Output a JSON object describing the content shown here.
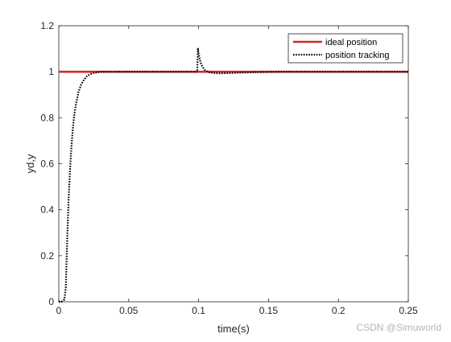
{
  "chart_data": {
    "type": "line",
    "title": "",
    "xlabel": "time(s)",
    "ylabel": "yd,y",
    "xlim": [
      0,
      0.25
    ],
    "ylim": [
      0,
      1.2
    ],
    "x_ticks": [
      0,
      0.05,
      0.1,
      0.15,
      0.2,
      0.25
    ],
    "x_tick_labels": [
      "0",
      "0.05",
      "0.1",
      "0.15",
      "0.2",
      "0.25"
    ],
    "y_ticks": [
      0,
      0.2,
      0.4,
      0.6,
      0.8,
      1,
      1.2
    ],
    "y_tick_labels": [
      "0",
      "0.2",
      "0.4",
      "0.6",
      "0.8",
      "1",
      "1.2"
    ],
    "grid": false,
    "legend_position": "top-right",
    "series": [
      {
        "name": "ideal position",
        "color": "#d62728",
        "style": "solid",
        "x": [
          0,
          0.25
        ],
        "y": [
          1,
          1
        ]
      },
      {
        "name": "position tracking",
        "color": "#000000",
        "style": "dotted",
        "x": [
          0,
          0.002,
          0.004,
          0.005,
          0.006,
          0.007,
          0.008,
          0.009,
          0.01,
          0.011,
          0.012,
          0.014,
          0.016,
          0.018,
          0.02,
          0.022,
          0.025,
          0.03,
          0.04,
          0.06,
          0.08,
          0.099,
          0.0995,
          0.1,
          0.101,
          0.102,
          0.103,
          0.104,
          0.105,
          0.107,
          0.11,
          0.115,
          0.12,
          0.13,
          0.14,
          0.16,
          0.2,
          0.25
        ],
        "y": [
          0,
          0,
          0.01,
          0.06,
          0.27,
          0.44,
          0.57,
          0.67,
          0.75,
          0.81,
          0.85,
          0.91,
          0.945,
          0.965,
          0.98,
          0.988,
          0.995,
          1.0,
          1.0,
          1.0,
          1.0,
          1.0,
          1.1,
          1.08,
          1.05,
          1.03,
          1.02,
          1.01,
          1.005,
          0.998,
          0.995,
          0.993,
          0.994,
          0.996,
          0.998,
          1.0,
          1.0,
          1.0
        ]
      }
    ]
  },
  "watermark": "CSDN @Simuworld"
}
